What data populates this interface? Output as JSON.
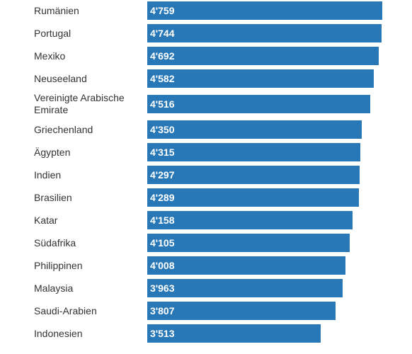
{
  "chart_data": {
    "type": "bar",
    "orientation": "horizontal",
    "color": "#2878b8",
    "categories": [
      "Rumänien",
      "Portugal",
      "Mexiko",
      "Neuseeland",
      "Vereinigte Arabische Emirate",
      "Griechenland",
      "Ägypten",
      "Indien",
      "Brasilien",
      "Katar",
      "Südafrika",
      "Philippinen",
      "Malaysia",
      "Saudi-Arabien",
      "Indonesien"
    ],
    "values": [
      4759,
      4744,
      4692,
      4582,
      4516,
      4350,
      4315,
      4297,
      4289,
      4158,
      4105,
      4008,
      3963,
      3807,
      3513
    ],
    "value_labels": [
      "4'759",
      "4'744",
      "4'692",
      "4'582",
      "4'516",
      "4'350",
      "4'315",
      "4'297",
      "4'289",
      "4'158",
      "4'105",
      "4'008",
      "3'963",
      "3'807",
      "3'513"
    ]
  }
}
